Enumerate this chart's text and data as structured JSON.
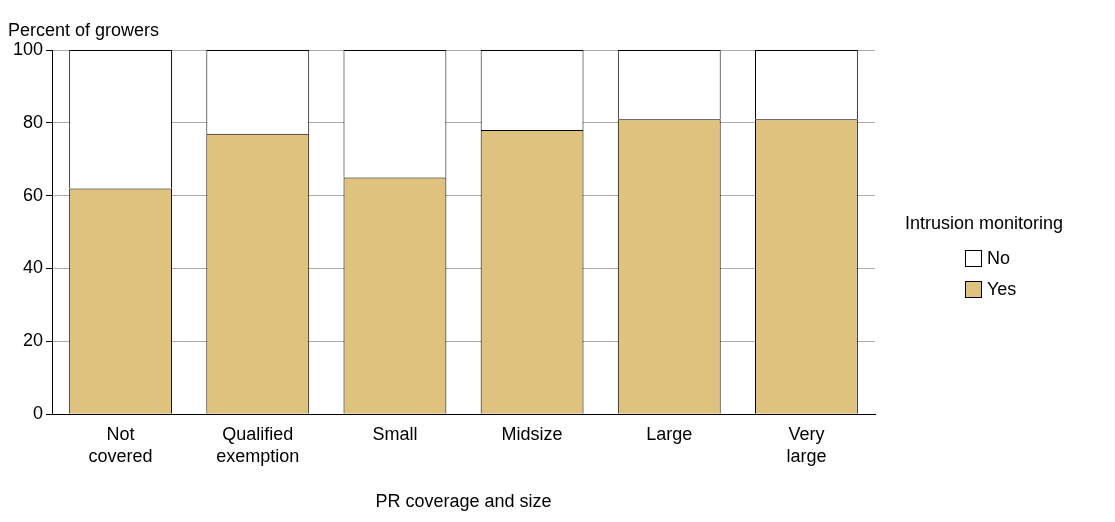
{
  "chart_data": {
    "type": "bar",
    "stacked": true,
    "ylabel": "Percent of growers",
    "xlabel": "PR coverage and size",
    "legend_title": "Intrusion monitoring",
    "categories": [
      "Not covered",
      "Qualified exemption",
      "Small",
      "Midsize",
      "Large",
      "Very large"
    ],
    "series": [
      {
        "name": "Yes",
        "color": "#dfc27d",
        "values": [
          62,
          77,
          65,
          78,
          81,
          81
        ]
      },
      {
        "name": "No",
        "color": "#ffffff",
        "values": [
          38,
          23,
          35,
          22,
          19,
          19
        ]
      }
    ],
    "ylim": [
      0,
      100
    ],
    "yticks": [
      0,
      20,
      40,
      60,
      80,
      100
    ],
    "grid": "y",
    "legend": "right"
  }
}
